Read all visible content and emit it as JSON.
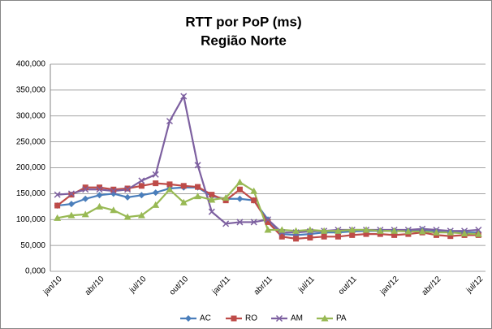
{
  "chart_data": {
    "type": "line",
    "title": "RTT por PoP (ms)",
    "subtitle": "Região Norte",
    "categories": [
      "jan/10",
      null,
      null,
      "abr/10",
      null,
      null,
      "jul/10",
      null,
      null,
      "out/10",
      null,
      null,
      "jan/11",
      null,
      null,
      "abr/11",
      null,
      null,
      "jul/11",
      null,
      null,
      "out/11",
      null,
      null,
      "jan/12",
      null,
      null,
      "abr/12",
      null,
      null,
      "jul/12"
    ],
    "series": [
      {
        "name": "AC",
        "color": "#4a7ebb",
        "marker": "diamond",
        "values": [
          127,
          130,
          140,
          147,
          150,
          143,
          147,
          152,
          160,
          162,
          162,
          145,
          140,
          140,
          137,
          100,
          72,
          70,
          72,
          75,
          75,
          77,
          78,
          78,
          78,
          78,
          80,
          77,
          76,
          75,
          75
        ]
      },
      {
        "name": "RO",
        "color": "#be4b48",
        "marker": "square",
        "values": [
          127,
          148,
          162,
          162,
          158,
          160,
          165,
          170,
          168,
          165,
          163,
          148,
          137,
          158,
          137,
          95,
          67,
          63,
          65,
          67,
          67,
          70,
          72,
          72,
          70,
          72,
          75,
          70,
          68,
          70,
          70
        ]
      },
      {
        "name": "AM",
        "color": "#7d60a0",
        "marker": "x",
        "values": [
          148,
          150,
          158,
          158,
          155,
          158,
          175,
          187,
          290,
          338,
          205,
          115,
          92,
          95,
          95,
          100,
          75,
          75,
          77,
          78,
          80,
          80,
          80,
          80,
          80,
          80,
          82,
          80,
          78,
          78,
          80
        ]
      },
      {
        "name": "PA",
        "color": "#98b954",
        "marker": "triangle",
        "values": [
          103,
          108,
          110,
          125,
          118,
          105,
          108,
          128,
          158,
          133,
          145,
          138,
          142,
          172,
          155,
          80,
          80,
          78,
          80,
          78,
          78,
          80,
          80,
          78,
          78,
          77,
          77,
          75,
          75,
          73,
          72
        ]
      }
    ],
    "ylim": [
      0,
      400
    ],
    "yticks": [
      {
        "value": 0,
        "label": "0,000"
      },
      {
        "value": 50,
        "label": "50,000"
      },
      {
        "value": 100,
        "label": "100,000"
      },
      {
        "value": 150,
        "label": "150,000"
      },
      {
        "value": 200,
        "label": "200,000"
      },
      {
        "value": 250,
        "label": "250,000"
      },
      {
        "value": 300,
        "label": "300,000"
      },
      {
        "value": 350,
        "label": "350,000"
      },
      {
        "value": 400,
        "label": "400,000"
      }
    ],
    "grid": true,
    "legend": "bottom"
  }
}
